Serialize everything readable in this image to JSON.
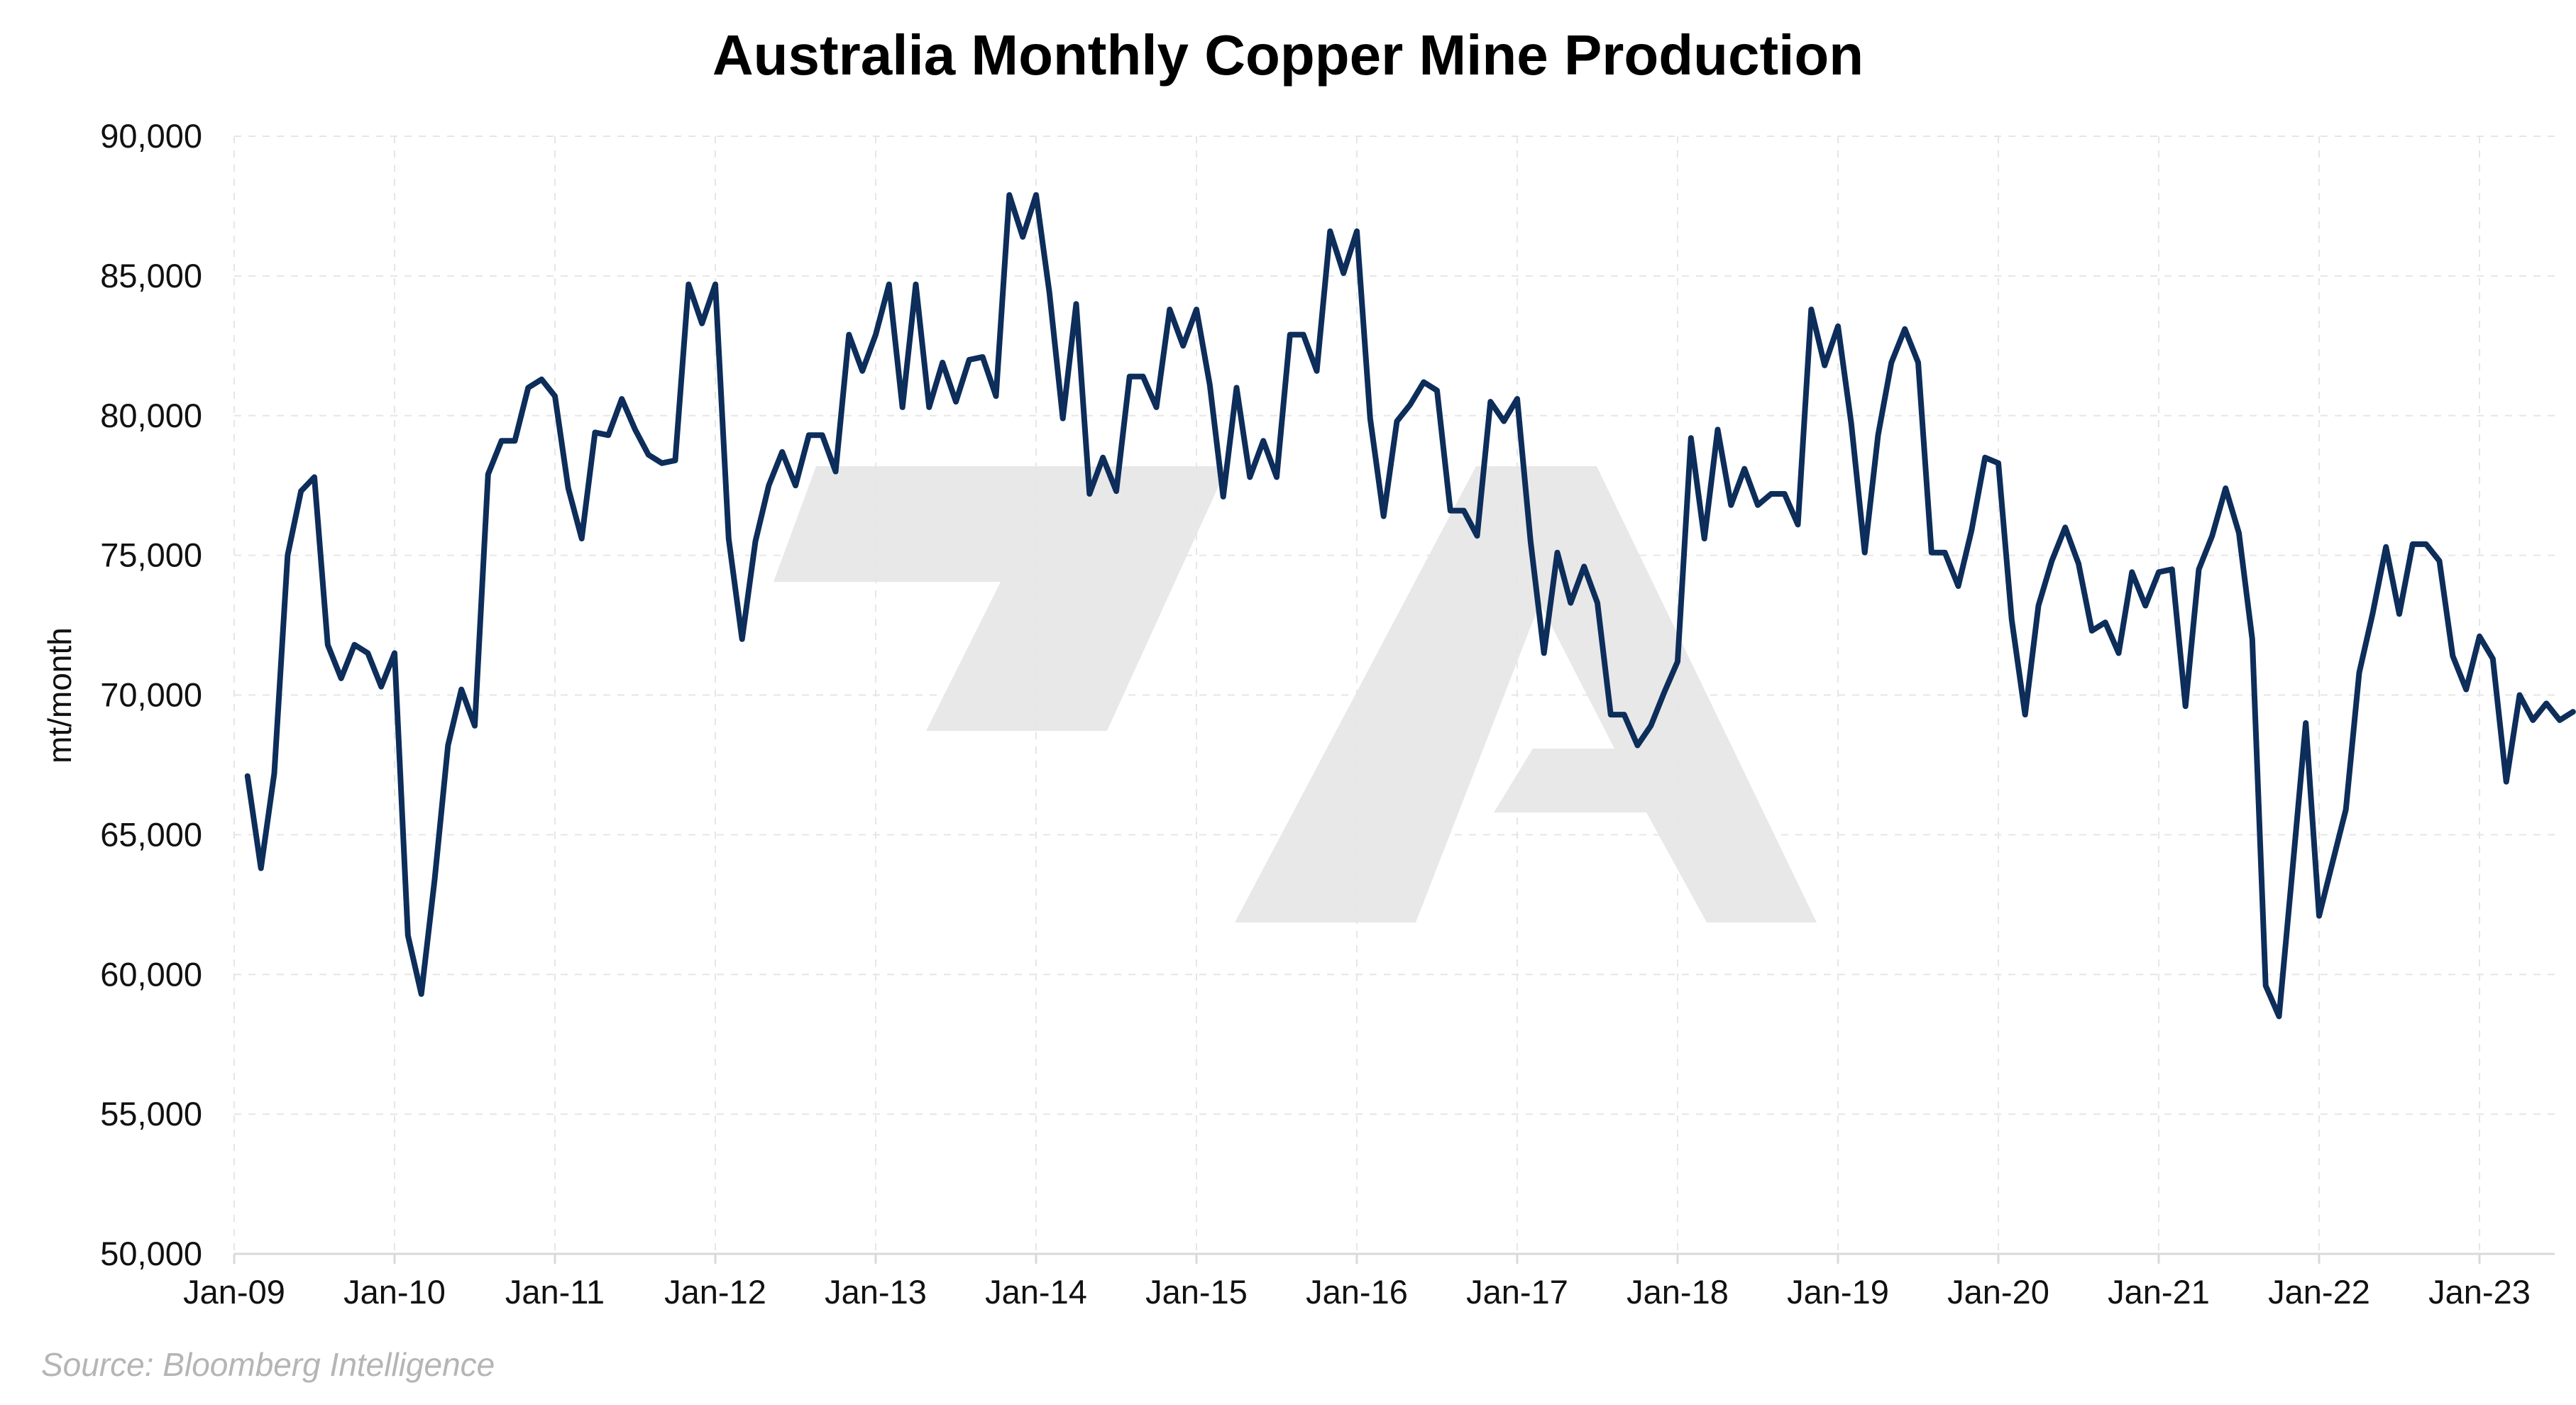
{
  "chart_data": {
    "type": "line",
    "title": "Australia Monthly Copper Mine Production",
    "xlabel": "",
    "ylabel": "mt/month",
    "source": "Source: Bloomberg Intelligence",
    "ylim": [
      50000,
      90000
    ],
    "yticks": [
      50000,
      55000,
      60000,
      65000,
      70000,
      75000,
      80000,
      85000,
      90000
    ],
    "ytick_labels": [
      "50,000",
      "55,000",
      "60,000",
      "65,000",
      "70,000",
      "75,000",
      "80,000",
      "85,000",
      "90,000"
    ],
    "xtick_labels": [
      "Jan-09",
      "Jan-10",
      "Jan-11",
      "Jan-12",
      "Jan-13",
      "Jan-14",
      "Jan-15",
      "Jan-16",
      "Jan-17",
      "Jan-18",
      "Jan-19",
      "Jan-20",
      "Jan-21",
      "Jan-22",
      "Jan-23"
    ],
    "x_start": "2009-02",
    "x_end": "2023-08",
    "grid": true,
    "legend": "none",
    "line_color": "#0d2d5a",
    "grid_color": "#e6e6e6",
    "watermark_color": "#e8e8e8",
    "series": [
      {
        "values": [
          67100,
          63800,
          67200,
          75000,
          77300,
          77800,
          71800,
          70600,
          71800,
          71500,
          70300,
          71500,
          61400,
          59300,
          63400,
          68200,
          70200,
          68900,
          77900,
          79100,
          79100,
          81000,
          81300,
          80700,
          77400,
          75600,
          79400,
          79300,
          80600,
          79500,
          78600,
          78300,
          78400,
          84700,
          83300,
          84700,
          75600,
          72000,
          75500,
          77500,
          78700,
          77500,
          79300,
          79300,
          78000,
          82900,
          81600,
          82900,
          84700,
          80300,
          84700,
          80300,
          81900,
          80500,
          82000,
          82100,
          80700,
          87900,
          86400,
          87900,
          84400,
          79900,
          84000,
          77200,
          78500,
          77300,
          81400,
          81400,
          80300,
          83800,
          82500,
          83800,
          81100,
          77100,
          81000,
          77800,
          79100,
          77800,
          82900,
          82900,
          81600,
          86600,
          85100,
          86600,
          79900,
          76400,
          79800,
          80400,
          81200,
          80900,
          76600,
          76600,
          75700,
          80500,
          79800,
          80600,
          75500,
          71500,
          75100,
          73300,
          74600,
          73300,
          69300,
          69300,
          68200,
          68900,
          70100,
          71200,
          79200,
          75600,
          79500,
          76800,
          78100,
          76800,
          77200,
          77200,
          76100,
          83800,
          81800,
          83200,
          79700,
          75100,
          79300,
          81900,
          83100,
          81900,
          75100,
          75100,
          73900,
          75900,
          78500,
          78300,
          72700,
          69300,
          73200,
          74800,
          76000,
          74700,
          72300,
          72600,
          71500,
          74400,
          73200,
          74400,
          74500,
          69600,
          74500,
          75700,
          77400,
          75800,
          72000,
          59600,
          58500,
          63700,
          69000,
          62100,
          64000,
          65900,
          70800,
          72900,
          75300,
          72900,
          75400,
          75400,
          74800,
          71400,
          70200,
          72100,
          71300,
          66900,
          70000,
          69100,
          69700,
          69100,
          69400
        ]
      }
    ]
  }
}
